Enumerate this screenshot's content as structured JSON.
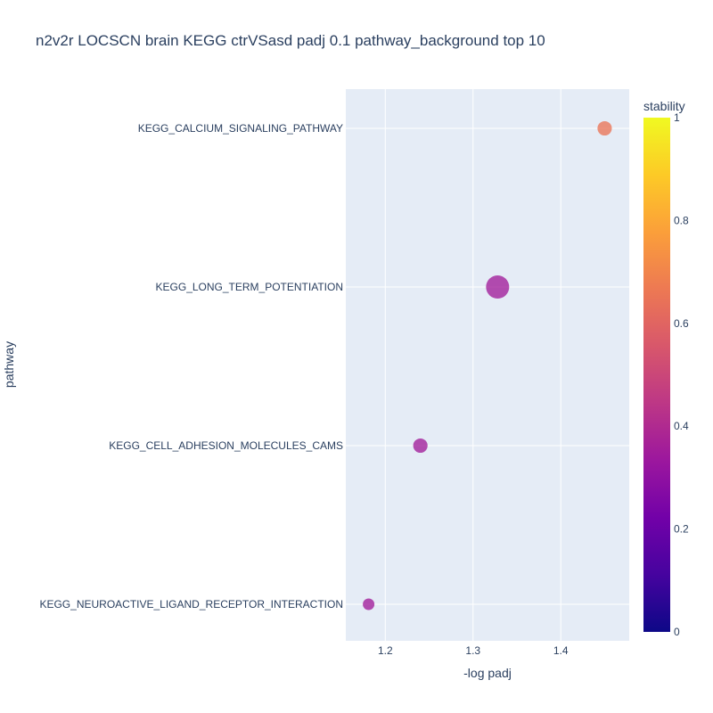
{
  "chart_data": {
    "type": "scatter",
    "title": "n2v2r LOCSCN brain KEGG ctrVSasd padj 0.1 pathway_background top 10",
    "xlabel": "-log padj",
    "ylabel": "pathway",
    "xlim": [
      1.155,
      1.478
    ],
    "x_ticks": [
      "1.2",
      "1.3",
      "1.4"
    ],
    "x_tick_values": [
      1.2,
      1.3,
      1.4
    ],
    "categories": [
      "KEGG_CALCIUM_SIGNALING_PATHWAY",
      "KEGG_LONG_TERM_POTENTIATION",
      "KEGG_CELL_ADHESION_MOLECULES_CAMS",
      "KEGG_NEUROACTIVE_LIGAND_RECEPTOR_INTERACTION"
    ],
    "points": [
      {
        "pathway": "KEGG_CALCIUM_SIGNALING_PATHWAY",
        "x": 1.45,
        "stability": 0.65,
        "size": 0.62
      },
      {
        "pathway": "KEGG_LONG_TERM_POTENTIATION",
        "x": 1.328,
        "stability": 0.35,
        "size": 1.0
      },
      {
        "pathway": "KEGG_CELL_ADHESION_MOLECULES_CAMS",
        "x": 1.24,
        "stability": 0.35,
        "size": 0.62
      },
      {
        "pathway": "KEGG_NEUROACTIVE_LIGAND_RECEPTOR_INTERACTION",
        "x": 1.181,
        "stability": 0.35,
        "size": 0.5
      }
    ],
    "colorbar": {
      "title": "stability",
      "range": [
        0,
        1
      ],
      "ticks": [
        "0",
        "0.2",
        "0.4",
        "0.6",
        "0.8",
        "1"
      ],
      "tick_values": [
        0,
        0.2,
        0.4,
        0.6,
        0.8,
        1
      ],
      "colorscale": [
        "#0d0887",
        "#46039f",
        "#7201a8",
        "#9c179e",
        "#bd3786",
        "#d8576b",
        "#ed7953",
        "#fb9f3a",
        "#fdca26",
        "#f0f921"
      ]
    },
    "grid": true,
    "plot_bg": "#e5ecf6"
  }
}
